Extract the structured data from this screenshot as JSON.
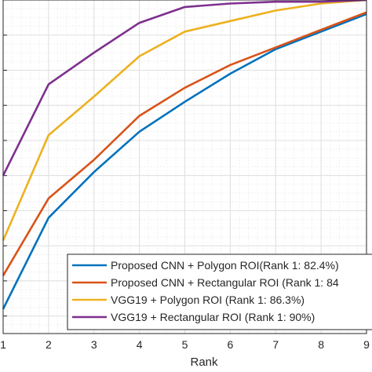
{
  "chart_data": {
    "type": "line",
    "title": "",
    "xlabel": "Rank",
    "ylabel": "",
    "xlim": [
      1,
      9
    ],
    "ylim": [
      0.81,
      1.0
    ],
    "x": [
      1,
      2,
      3,
      4,
      5,
      6,
      7,
      8,
      9
    ],
    "x_tick_labels": [
      "1",
      "2",
      "3",
      "4",
      "5",
      "6",
      "7",
      "8",
      "9"
    ],
    "y_grid": [
      0.82,
      0.84,
      0.86,
      0.88,
      0.9,
      0.92,
      0.94,
      0.96,
      0.98,
      1.0
    ],
    "grid": "on",
    "legend_position": "bottom-right",
    "series": [
      {
        "name": "Proposed CNN + Polygon ROI(Rank 1: 82.4%)",
        "color": "#0072BD",
        "values": [
          0.824,
          0.876,
          0.902,
          0.925,
          0.942,
          0.958,
          0.972,
          0.982,
          0.992
        ]
      },
      {
        "name": "Proposed CNN + Rectangular ROI (Rank 1: 84",
        "color": "#D95319",
        "values": [
          0.843,
          0.887,
          0.909,
          0.934,
          0.95,
          0.963,
          0.973,
          0.983,
          0.993
        ]
      },
      {
        "name": "VGG19 + Polygon ROI (Rank 1: 86.3%)",
        "color": "#EDB120",
        "values": [
          0.863,
          0.923,
          0.945,
          0.968,
          0.982,
          0.988,
          0.994,
          0.998,
          1.0
        ]
      },
      {
        "name": "VGG19 + Rectangular ROI (Rank 1: 90%)",
        "color": "#7E2F8E",
        "values": [
          0.9,
          0.952,
          0.97,
          0.987,
          0.996,
          0.998,
          0.999,
          0.999,
          1.0
        ]
      }
    ]
  }
}
